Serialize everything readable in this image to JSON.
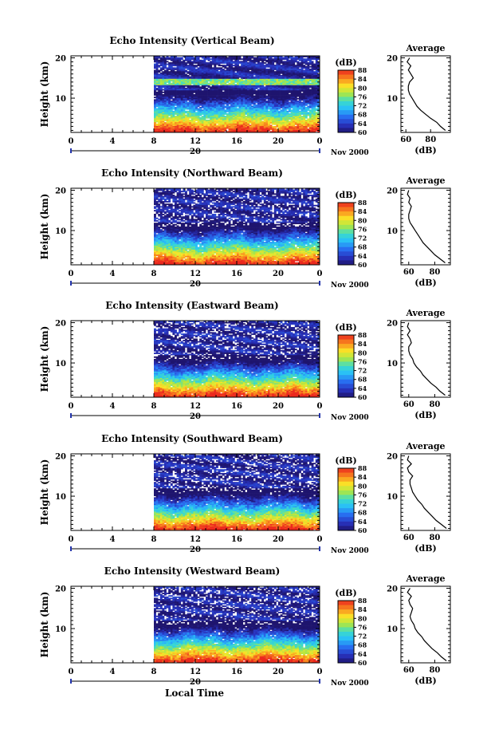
{
  "chart_data": [
    {
      "type": "heatmap",
      "title": "Echo Intensity (Vertical Beam)",
      "ylabel": "Height (km)",
      "xlabel": "",
      "x_ticks": [
        "0",
        "4",
        "8",
        "12",
        "16",
        "20",
        "0"
      ],
      "y_ticks": [
        "20",
        "10"
      ],
      "xlim": [
        0,
        24
      ],
      "ylim": [
        1.5,
        20.5
      ],
      "data_start_hour": 8,
      "date_marker": "20",
      "date_label": "Nov 2000",
      "colorbar": {
        "label": "(dB)",
        "ticks": [
          "88",
          "84",
          "80",
          "76",
          "72",
          "68",
          "64",
          "60"
        ],
        "range": [
          60,
          88
        ]
      },
      "profile": {
        "title": "Average",
        "xlabel": "(dB)",
        "x_ticks": [
          "60",
          "80"
        ],
        "y_ticks": [
          "20",
          "10"
        ],
        "xlim": [
          56,
          96
        ],
        "heights": [
          2,
          3,
          4,
          5,
          6,
          7,
          8,
          9,
          10,
          11,
          12,
          13,
          14,
          15,
          16,
          17,
          18,
          19,
          20
        ],
        "values": [
          92,
          88,
          85,
          80,
          76,
          72,
          69,
          67,
          65,
          63,
          62,
          62,
          63,
          66,
          64,
          62,
          64,
          61,
          63
        ]
      }
    },
    {
      "type": "heatmap",
      "title": "Echo Intensity (Northward Beam)",
      "ylabel": "Height (km)",
      "xlabel": "",
      "x_ticks": [
        "0",
        "4",
        "8",
        "12",
        "16",
        "20",
        "0"
      ],
      "y_ticks": [
        "20",
        "10"
      ],
      "xlim": [
        0,
        24
      ],
      "ylim": [
        1.5,
        20.5
      ],
      "data_start_hour": 8,
      "date_marker": "20",
      "date_label": "Nov 2000",
      "colorbar": {
        "label": "(dB)",
        "ticks": [
          "88",
          "84",
          "80",
          "76",
          "72",
          "68",
          "64",
          "60"
        ],
        "range": [
          60,
          88
        ]
      },
      "profile": {
        "title": "Average",
        "xlabel": "(dB)",
        "x_ticks": [
          "60",
          "80"
        ],
        "y_ticks": [
          "20",
          "10"
        ],
        "xlim": [
          54,
          92
        ],
        "heights": [
          2,
          3,
          4,
          5,
          6,
          7,
          8,
          9,
          10,
          11,
          12,
          13,
          14,
          15,
          16,
          17,
          18,
          19,
          20
        ],
        "values": [
          88,
          84,
          80,
          77,
          74,
          71,
          69,
          67,
          65,
          63,
          61,
          60,
          60,
          61,
          62,
          60,
          61,
          59,
          60
        ]
      }
    },
    {
      "type": "heatmap",
      "title": "Echo Intensity (Eastward Beam)",
      "ylabel": "Height (km)",
      "xlabel": "",
      "x_ticks": [
        "0",
        "4",
        "8",
        "12",
        "16",
        "20",
        "0"
      ],
      "y_ticks": [
        "20",
        "10"
      ],
      "xlim": [
        0,
        24
      ],
      "ylim": [
        1.5,
        20.5
      ],
      "data_start_hour": 8,
      "date_marker": "20",
      "date_label": "Nov 2000",
      "colorbar": {
        "label": "(dB)",
        "ticks": [
          "88",
          "84",
          "80",
          "76",
          "72",
          "68",
          "64",
          "60"
        ],
        "range": [
          60,
          88
        ]
      },
      "profile": {
        "title": "Average",
        "xlabel": "(dB)",
        "x_ticks": [
          "60",
          "80"
        ],
        "y_ticks": [
          "20",
          "10"
        ],
        "xlim": [
          54,
          92
        ],
        "heights": [
          2,
          3,
          4,
          5,
          6,
          7,
          8,
          9,
          10,
          11,
          12,
          13,
          14,
          15,
          16,
          17,
          18,
          19,
          20
        ],
        "values": [
          88,
          84,
          81,
          77,
          74,
          71,
          69,
          66,
          64,
          63,
          61,
          60,
          60,
          62,
          61,
          59,
          61,
          59,
          60
        ]
      }
    },
    {
      "type": "heatmap",
      "title": "Echo Intensity (Southward Beam)",
      "ylabel": "Height (km)",
      "xlabel": "",
      "x_ticks": [
        "0",
        "4",
        "8",
        "12",
        "16",
        "20",
        "0"
      ],
      "y_ticks": [
        "20",
        "10"
      ],
      "xlim": [
        0,
        24
      ],
      "ylim": [
        1.5,
        20.5
      ],
      "data_start_hour": 8,
      "date_marker": "20",
      "date_label": "Nov 2000",
      "colorbar": {
        "label": "(dB)",
        "ticks": [
          "88",
          "84",
          "80",
          "76",
          "72",
          "68",
          "64",
          "60"
        ],
        "range": [
          60,
          88
        ]
      },
      "profile": {
        "title": "Average",
        "xlabel": "(dB)",
        "x_ticks": [
          "60",
          "80"
        ],
        "y_ticks": [
          "20",
          "10"
        ],
        "xlim": [
          54,
          92
        ],
        "heights": [
          2,
          3,
          4,
          5,
          6,
          7,
          8,
          9,
          10,
          11,
          12,
          13,
          14,
          15,
          16,
          17,
          18,
          19,
          20
        ],
        "values": [
          89,
          85,
          81,
          78,
          75,
          72,
          70,
          67,
          65,
          63,
          62,
          61,
          61,
          63,
          60,
          59,
          62,
          59,
          60
        ]
      }
    },
    {
      "type": "heatmap",
      "title": "Echo Intensity (Westward Beam)",
      "ylabel": "Height (km)",
      "xlabel": "Local Time",
      "x_ticks": [
        "0",
        "4",
        "8",
        "12",
        "16",
        "20",
        "0"
      ],
      "y_ticks": [
        "20",
        "10"
      ],
      "xlim": [
        0,
        24
      ],
      "ylim": [
        1.5,
        20.5
      ],
      "data_start_hour": 8,
      "date_marker": "20",
      "date_label": "Nov 2000",
      "colorbar": {
        "label": "(dB)",
        "ticks": [
          "88",
          "84",
          "80",
          "76",
          "72",
          "68",
          "64",
          "60"
        ],
        "range": [
          60,
          88
        ]
      },
      "profile": {
        "title": "Average",
        "xlabel": "(dB)",
        "x_ticks": [
          "60",
          "80"
        ],
        "y_ticks": [
          "20",
          "10"
        ],
        "xlim": [
          54,
          92
        ],
        "heights": [
          2,
          3,
          4,
          5,
          6,
          7,
          8,
          9,
          10,
          11,
          12,
          13,
          14,
          15,
          16,
          17,
          18,
          19,
          20
        ],
        "values": [
          89,
          85,
          82,
          78,
          75,
          72,
          70,
          67,
          65,
          64,
          62,
          61,
          62,
          63,
          61,
          60,
          62,
          59,
          61
        ]
      }
    }
  ]
}
